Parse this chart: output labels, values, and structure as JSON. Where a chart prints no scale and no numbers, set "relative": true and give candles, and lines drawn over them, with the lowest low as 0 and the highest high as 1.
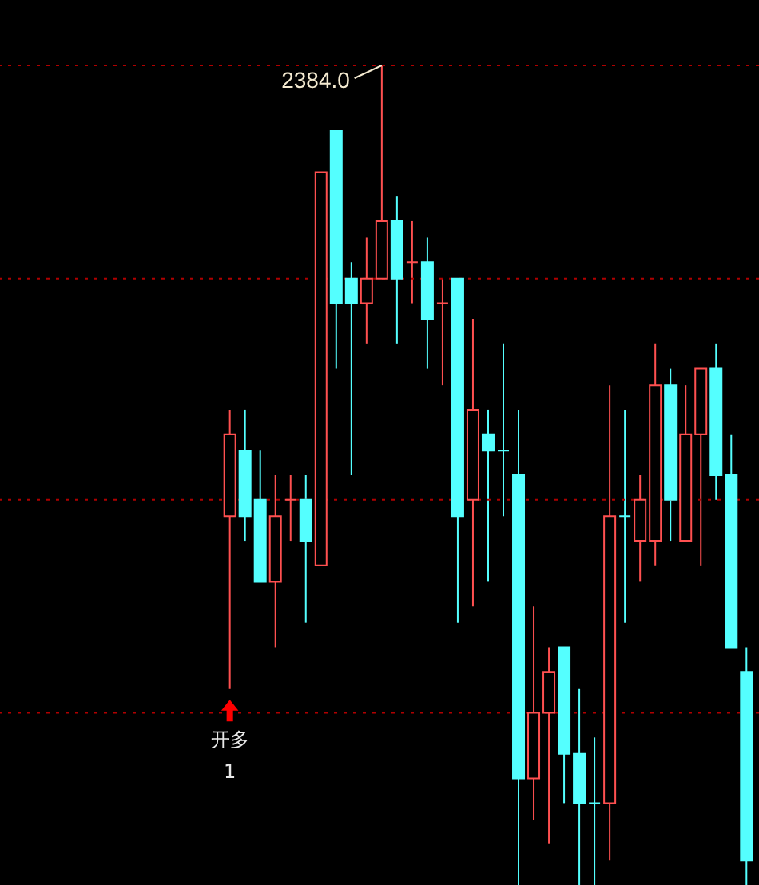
{
  "chart_data": {
    "type": "candlestick",
    "relative": true,
    "tick_labels": false,
    "categories": [
      null,
      null,
      null,
      null,
      null,
      null,
      null,
      null,
      null,
      null,
      null,
      null,
      null,
      null,
      null,
      null,
      null,
      null,
      null,
      null,
      null,
      null,
      null,
      null,
      null,
      null,
      null,
      null,
      null,
      null,
      null,
      null,
      null,
      null,
      null
    ],
    "ohlc": [
      [
        0.45,
        0.58,
        0.24,
        0.55
      ],
      [
        0.53,
        0.58,
        0.42,
        0.45
      ],
      [
        0.47,
        0.53,
        0.37,
        0.37
      ],
      [
        0.37,
        0.5,
        0.29,
        0.45
      ],
      [
        0.47,
        0.5,
        0.42,
        0.47
      ],
      [
        0.47,
        0.5,
        0.32,
        0.42
      ],
      [
        0.39,
        0.87,
        0.39,
        0.87
      ],
      [
        0.92,
        0.92,
        0.63,
        0.71
      ],
      [
        0.74,
        0.76,
        0.5,
        0.71
      ],
      [
        0.71,
        0.79,
        0.66,
        0.74
      ],
      [
        0.74,
        1,
        0.74,
        0.81
      ],
      [
        0.81,
        0.84,
        0.66,
        0.74
      ],
      [
        0.76,
        0.81,
        0.71,
        0.76
      ],
      [
        0.76,
        0.79,
        0.63,
        0.69
      ],
      [
        0.71,
        0.74,
        0.61,
        0.71
      ],
      [
        0.74,
        0.74,
        0.32,
        0.45
      ],
      [
        0.47,
        0.69,
        0.34,
        0.58
      ],
      [
        0.55,
        0.58,
        0.37,
        0.53
      ],
      [
        0.53,
        0.66,
        0.45,
        0.53
      ],
      [
        0.5,
        0.58,
        0,
        0.13
      ],
      [
        0.13,
        0.34,
        0.08,
        0.21
      ],
      [
        0.21,
        0.29,
        0.05,
        0.26
      ],
      [
        0.29,
        0.29,
        0.1,
        0.16
      ],
      [
        0.16,
        0.24,
        0,
        0.1
      ],
      [
        0.1,
        0.18,
        0,
        0.1
      ],
      [
        0.1,
        0.61,
        0.03,
        0.45
      ],
      [
        0.45,
        0.58,
        0.32,
        0.45
      ],
      [
        0.42,
        0.5,
        0.37,
        0.47
      ],
      [
        0.42,
        0.66,
        0.39,
        0.61
      ],
      [
        0.61,
        0.63,
        0.42,
        0.47
      ],
      [
        0.42,
        0.61,
        0.42,
        0.55
      ],
      [
        0.55,
        0.63,
        0.39,
        0.63
      ],
      [
        0.63,
        0.66,
        0.47,
        0.5
      ],
      [
        0.5,
        0.55,
        0.29,
        0.29
      ],
      [
        0.26,
        0.29,
        0,
        0.03
      ]
    ],
    "colors": [
      "#ff5050",
      "#54ffff",
      "#54ffff",
      "#ff5050",
      "#ff5050",
      "#54ffff",
      "#ff5050",
      "#54ffff",
      "#54ffff",
      "#ff5050",
      "#ff5050",
      "#54ffff",
      "#ff5050",
      "#54ffff",
      "#ff5050",
      "#54ffff",
      "#ff5050",
      "#54ffff",
      "#54ffff",
      "#54ffff",
      "#ff5050",
      "#ff5050",
      "#54ffff",
      "#54ffff",
      "#54ffff",
      "#ff5050",
      "#54ffff",
      "#ff5050",
      "#ff5050",
      "#54ffff",
      "#ff5050",
      "#ff5050",
      "#54ffff",
      "#54ffff",
      "#54ffff"
    ],
    "ref_lines": [
      {
        "axis": "y",
        "value": 1,
        "color": "#b00000",
        "line_style": "dotted"
      },
      {
        "axis": "y",
        "value": 0.74,
        "color": "#b00000",
        "line_style": "dotted"
      },
      {
        "axis": "y",
        "value": 0.47,
        "color": "#b00000",
        "line_style": "dotted"
      },
      {
        "axis": "y",
        "value": 0.21,
        "color": "#b00000",
        "line_style": "dotted"
      }
    ],
    "annotations": [
      {
        "text": "2384.0",
        "y": 1
      },
      "开多",
      "1"
    ]
  }
}
